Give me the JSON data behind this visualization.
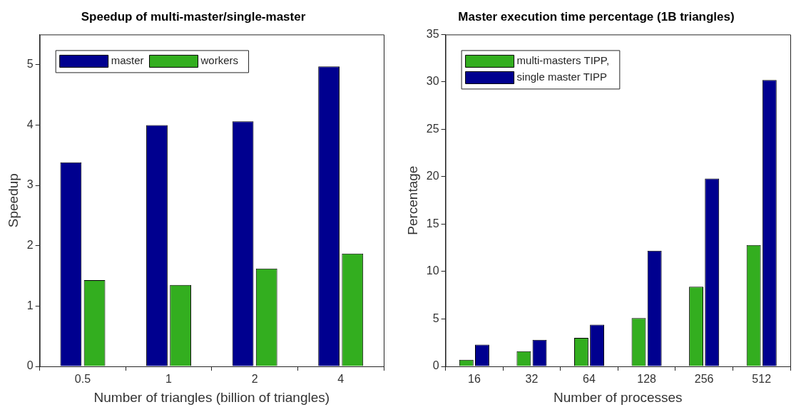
{
  "chart_data": [
    {
      "type": "bar",
      "title": "Speedup of multi-master/single-master",
      "xlabel": "Number of triangles (billion of triangles)",
      "ylabel": "Speedup",
      "categories": [
        "0.5",
        "1",
        "2",
        "4"
      ],
      "series": [
        {
          "name": "master",
          "color": "#00008f",
          "values": [
            3.38,
            4.0,
            4.06,
            4.97
          ]
        },
        {
          "name": "workers",
          "color": "#33ae1f",
          "values": [
            1.43,
            1.35,
            1.62,
            1.87
          ]
        }
      ],
      "ylim": [
        0,
        5.5
      ],
      "yticks": [
        0,
        1,
        2,
        3,
        4,
        5
      ],
      "grid": false,
      "legend": "top left"
    },
    {
      "type": "bar",
      "title": "Master execution time percentage (1B triangles)",
      "xlabel": "Number of processes",
      "ylabel": "Percentage",
      "categories": [
        "16",
        "32",
        "64",
        "128",
        "256",
        "512"
      ],
      "series": [
        {
          "name": "multi-masters TIPP,",
          "color": "#33ae1f",
          "values": [
            0.7,
            1.6,
            3.0,
            5.1,
            8.4,
            12.8
          ]
        },
        {
          "name": "single master TIPP",
          "color": "#00008f",
          "values": [
            2.3,
            2.8,
            4.4,
            12.2,
            19.8,
            30.2
          ]
        }
      ],
      "ylim": [
        0,
        35
      ],
      "yticks": [
        0,
        5,
        10,
        15,
        20,
        25,
        30,
        35
      ],
      "grid": false,
      "legend": "top left"
    }
  ]
}
